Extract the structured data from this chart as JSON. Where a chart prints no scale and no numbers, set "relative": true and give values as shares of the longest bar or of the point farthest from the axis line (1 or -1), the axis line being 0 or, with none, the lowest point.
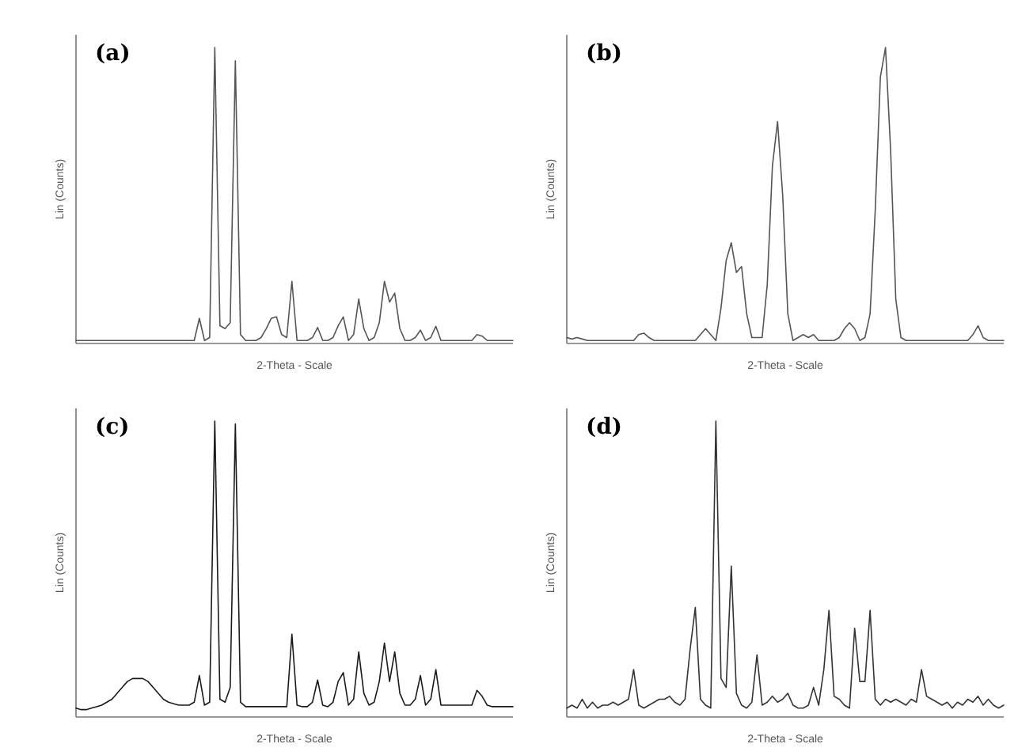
{
  "chart_data": [
    {
      "type": "line",
      "title": "(a)",
      "xlabel": "2-Theta - Scale",
      "ylabel": "Lin (Counts)",
      "relative": true,
      "categories": [
        null,
        null,
        null,
        null,
        null,
        null,
        null,
        null,
        null,
        null,
        null,
        null,
        null,
        null,
        null,
        null,
        null,
        null,
        null,
        null,
        null,
        null,
        null,
        null,
        null,
        null,
        null,
        null,
        null,
        null,
        null,
        null,
        null,
        null,
        null,
        null,
        null,
        null,
        null,
        null,
        null,
        null,
        null,
        null,
        null,
        null,
        null,
        null,
        null,
        null,
        null,
        null,
        null,
        null,
        null,
        null,
        null,
        null,
        null,
        null,
        null,
        null,
        null,
        null,
        null,
        null,
        null,
        null,
        null,
        null,
        null,
        null,
        null,
        null,
        null,
        null,
        null,
        null,
        null,
        null,
        null,
        null,
        null,
        null,
        null,
        null
      ],
      "series": [
        {
          "color": "#555555",
          "values": [
            0.01,
            0.01,
            0.01,
            0.01,
            0.01,
            0.01,
            0.01,
            0.01,
            0.01,
            0.01,
            0.01,
            0.01,
            0.01,
            0.01,
            0.01,
            0.01,
            0.01,
            0.01,
            0.01,
            0.01,
            0.01,
            0.01,
            0.01,
            0.01,
            0.085,
            0.01,
            0.02,
            1.0,
            0.06,
            0.05,
            0.07,
            0.955,
            0.03,
            0.01,
            0.01,
            0.01,
            0.02,
            0.05,
            0.085,
            0.09,
            0.03,
            0.02,
            0.21,
            0.01,
            0.01,
            0.01,
            0.02,
            0.054,
            0.01,
            0.01,
            0.02,
            0.06,
            0.09,
            0.01,
            0.03,
            0.15,
            0.05,
            0.01,
            0.02,
            0.07,
            0.21,
            0.14,
            0.17,
            0.05,
            0.01,
            0.01,
            0.02,
            0.045,
            0.01,
            0.02,
            0.058,
            0.01,
            0.01,
            0.01,
            0.01,
            0.01,
            0.01,
            0.01,
            0.03,
            0.025,
            0.01,
            0.01,
            0.01,
            0.01,
            0.01,
            0.01
          ]
        }
      ]
    },
    {
      "type": "line",
      "title": "(b)",
      "xlabel": "2-Theta - Scale",
      "ylabel": "Lin (Counts)",
      "relative": true,
      "categories": [
        null,
        null,
        null,
        null,
        null,
        null,
        null,
        null,
        null,
        null,
        null,
        null,
        null,
        null,
        null,
        null,
        null,
        null,
        null,
        null,
        null,
        null,
        null,
        null,
        null,
        null,
        null,
        null,
        null,
        null,
        null,
        null,
        null,
        null,
        null,
        null,
        null,
        null,
        null,
        null,
        null,
        null,
        null,
        null,
        null,
        null,
        null,
        null,
        null,
        null,
        null,
        null,
        null,
        null,
        null,
        null,
        null,
        null,
        null,
        null,
        null,
        null,
        null,
        null,
        null,
        null,
        null,
        null,
        null,
        null,
        null,
        null,
        null,
        null,
        null,
        null,
        null,
        null,
        null,
        null,
        null,
        null,
        null,
        null,
        null,
        null
      ],
      "series": [
        {
          "color": "#555555",
          "values": [
            0.02,
            0.015,
            0.02,
            0.015,
            0.01,
            0.01,
            0.01,
            0.01,
            0.01,
            0.01,
            0.01,
            0.01,
            0.01,
            0.01,
            0.03,
            0.035,
            0.02,
            0.01,
            0.01,
            0.01,
            0.01,
            0.01,
            0.01,
            0.01,
            0.01,
            0.01,
            0.03,
            0.05,
            0.03,
            0.01,
            0.12,
            0.28,
            0.34,
            0.24,
            0.26,
            0.1,
            0.02,
            0.02,
            0.02,
            0.2,
            0.6,
            0.75,
            0.5,
            0.1,
            0.01,
            0.02,
            0.03,
            0.02,
            0.03,
            0.01,
            0.01,
            0.01,
            0.01,
            0.02,
            0.05,
            0.07,
            0.05,
            0.01,
            0.02,
            0.1,
            0.45,
            0.9,
            1.0,
            0.65,
            0.15,
            0.02,
            0.01,
            0.01,
            0.01,
            0.01,
            0.01,
            0.01,
            0.01,
            0.01,
            0.01,
            0.01,
            0.01,
            0.01,
            0.01,
            0.03,
            0.06,
            0.02,
            0.01,
            0.01,
            0.01,
            0.01
          ]
        }
      ]
    },
    {
      "type": "line",
      "title": "(c)",
      "xlabel": "2-Theta - Scale",
      "ylabel": "Lin (Counts)",
      "relative": true,
      "categories": [
        null,
        null,
        null,
        null,
        null,
        null,
        null,
        null,
        null,
        null,
        null,
        null,
        null,
        null,
        null,
        null,
        null,
        null,
        null,
        null,
        null,
        null,
        null,
        null,
        null,
        null,
        null,
        null,
        null,
        null,
        null,
        null,
        null,
        null,
        null,
        null,
        null,
        null,
        null,
        null,
        null,
        null,
        null,
        null,
        null,
        null,
        null,
        null,
        null,
        null,
        null,
        null,
        null,
        null,
        null,
        null,
        null,
        null,
        null,
        null,
        null,
        null,
        null,
        null,
        null,
        null,
        null,
        null,
        null,
        null,
        null,
        null,
        null,
        null,
        null,
        null,
        null,
        null,
        null,
        null,
        null,
        null,
        null,
        null,
        null,
        null
      ],
      "series": [
        {
          "color": "#1a1a1a",
          "values": [
            0.03,
            0.025,
            0.025,
            0.03,
            0.035,
            0.04,
            0.05,
            0.06,
            0.08,
            0.1,
            0.12,
            0.13,
            0.13,
            0.13,
            0.12,
            0.1,
            0.08,
            0.06,
            0.05,
            0.045,
            0.04,
            0.04,
            0.04,
            0.05,
            0.14,
            0.04,
            0.05,
            1.0,
            0.06,
            0.05,
            0.1,
            0.99,
            0.05,
            0.035,
            0.035,
            0.035,
            0.035,
            0.035,
            0.035,
            0.035,
            0.035,
            0.035,
            0.28,
            0.04,
            0.035,
            0.035,
            0.05,
            0.125,
            0.04,
            0.035,
            0.05,
            0.12,
            0.15,
            0.04,
            0.06,
            0.22,
            0.08,
            0.04,
            0.05,
            0.12,
            0.25,
            0.12,
            0.22,
            0.08,
            0.04,
            0.04,
            0.06,
            0.14,
            0.04,
            0.06,
            0.16,
            0.04,
            0.04,
            0.04,
            0.04,
            0.04,
            0.04,
            0.04,
            0.09,
            0.07,
            0.04,
            0.035,
            0.035,
            0.035,
            0.035,
            0.035
          ]
        }
      ]
    },
    {
      "type": "line",
      "title": "(d)",
      "xlabel": "2-Theta - Scale",
      "ylabel": "Lin (Counts)",
      "relative": true,
      "categories": [
        null,
        null,
        null,
        null,
        null,
        null,
        null,
        null,
        null,
        null,
        null,
        null,
        null,
        null,
        null,
        null,
        null,
        null,
        null,
        null,
        null,
        null,
        null,
        null,
        null,
        null,
        null,
        null,
        null,
        null,
        null,
        null,
        null,
        null,
        null,
        null,
        null,
        null,
        null,
        null,
        null,
        null,
        null,
        null,
        null,
        null,
        null,
        null,
        null,
        null,
        null,
        null,
        null,
        null,
        null,
        null,
        null,
        null,
        null,
        null,
        null,
        null,
        null,
        null,
        null,
        null,
        null,
        null,
        null,
        null,
        null,
        null,
        null,
        null,
        null,
        null,
        null,
        null,
        null,
        null,
        null,
        null,
        null,
        null,
        null,
        null
      ],
      "series": [
        {
          "color": "#333333",
          "values": [
            0.03,
            0.04,
            0.03,
            0.06,
            0.03,
            0.05,
            0.03,
            0.04,
            0.04,
            0.05,
            0.04,
            0.05,
            0.06,
            0.16,
            0.04,
            0.03,
            0.04,
            0.05,
            0.06,
            0.06,
            0.07,
            0.05,
            0.04,
            0.06,
            0.23,
            0.37,
            0.06,
            0.04,
            0.03,
            1.0,
            0.13,
            0.1,
            0.51,
            0.08,
            0.04,
            0.03,
            0.05,
            0.21,
            0.04,
            0.05,
            0.07,
            0.05,
            0.06,
            0.08,
            0.04,
            0.03,
            0.03,
            0.04,
            0.1,
            0.04,
            0.16,
            0.36,
            0.07,
            0.06,
            0.04,
            0.03,
            0.3,
            0.12,
            0.12,
            0.36,
            0.06,
            0.04,
            0.06,
            0.05,
            0.06,
            0.05,
            0.04,
            0.06,
            0.05,
            0.16,
            0.07,
            0.06,
            0.05,
            0.04,
            0.05,
            0.03,
            0.05,
            0.04,
            0.06,
            0.05,
            0.07,
            0.04,
            0.06,
            0.04,
            0.03,
            0.04
          ]
        }
      ]
    }
  ]
}
